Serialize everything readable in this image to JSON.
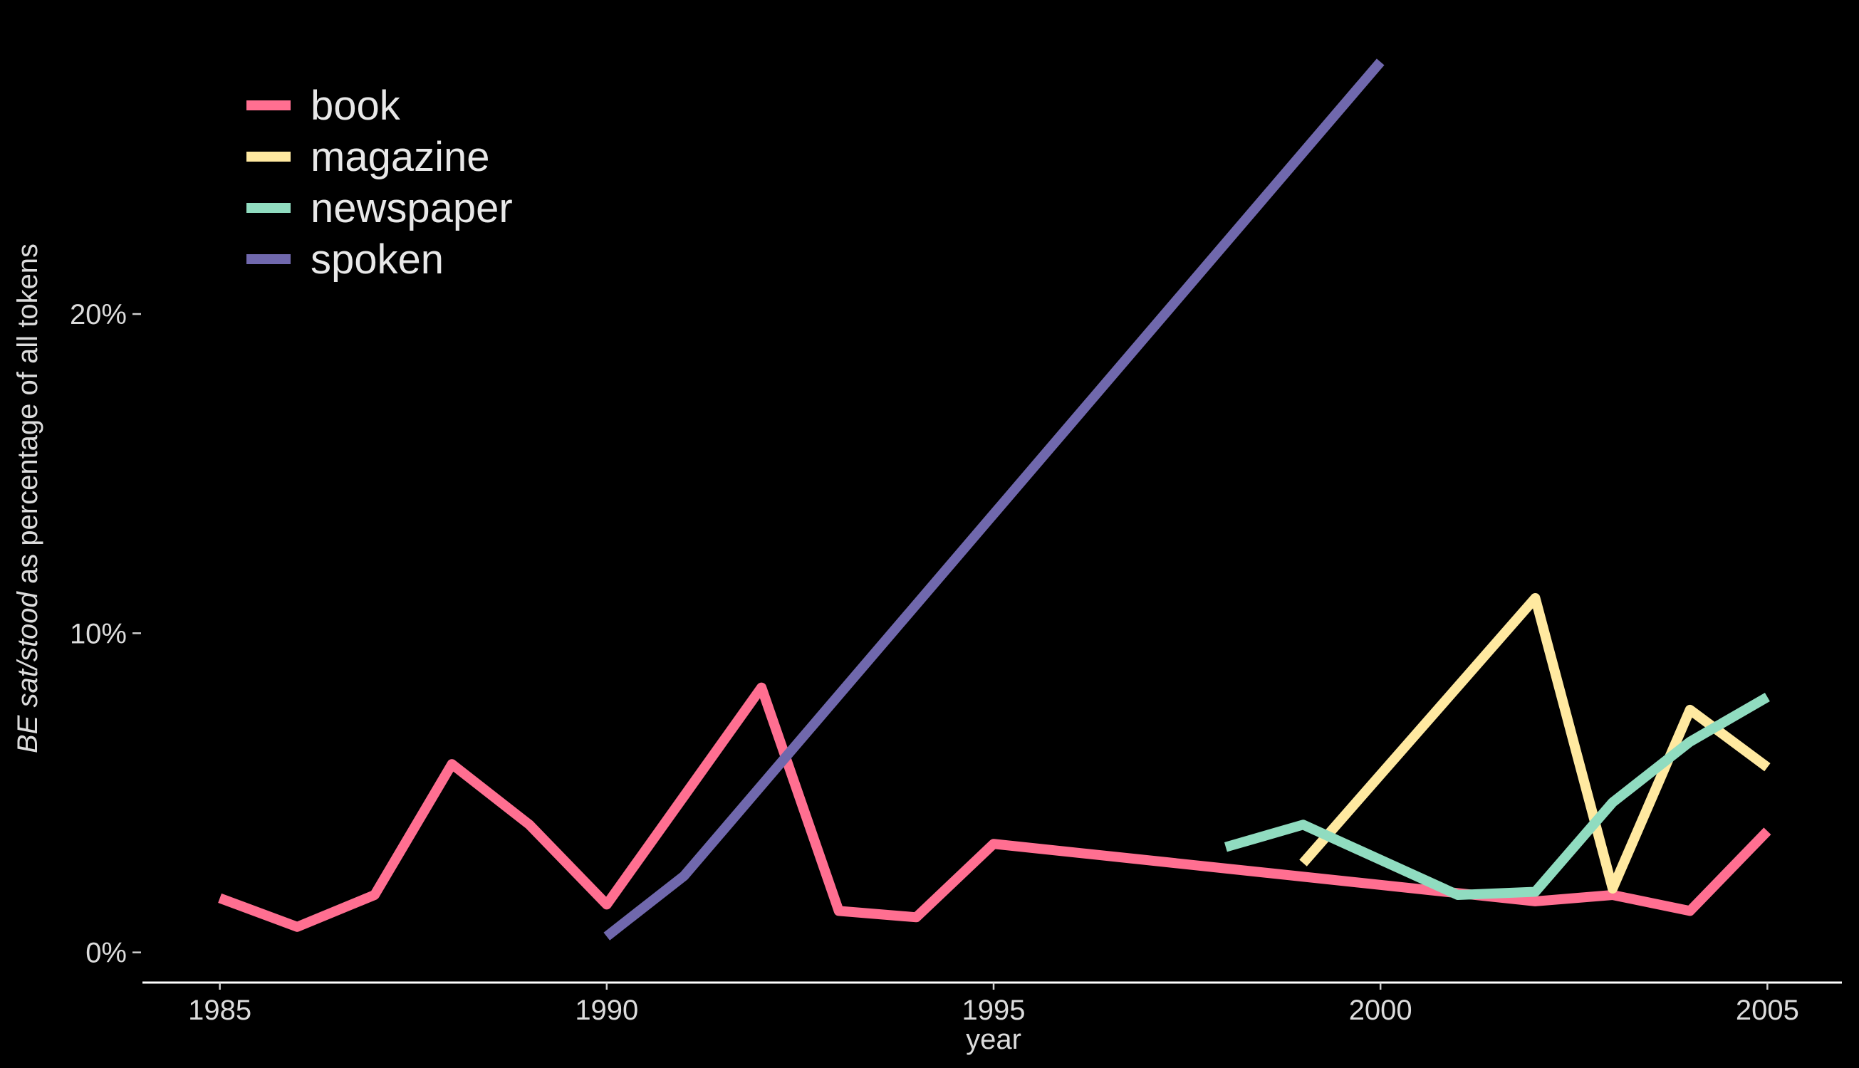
{
  "chart_data": {
    "type": "line",
    "xlabel": "year",
    "ylabel_italic": "BE sat/stood",
    "ylabel_rest": " as percentage of all tokens",
    "xlim": [
      1984,
      2006
    ],
    "ylim": [
      -0.9,
      28.5
    ],
    "x_ticks": [
      1985,
      1990,
      1995,
      2000,
      2005
    ],
    "x_tick_labels": [
      "1985",
      "1990",
      "1995",
      "2000",
      "2005"
    ],
    "y_ticks": [
      0,
      10,
      20
    ],
    "y_tick_labels": [
      "0%",
      "10%",
      "20%"
    ],
    "grid": false,
    "legend_position": "top-left",
    "series": [
      {
        "name": "book",
        "color": "#ff6f91",
        "points": [
          [
            1985,
            1.7
          ],
          [
            1986,
            0.8
          ],
          [
            1987,
            1.8
          ],
          [
            1988,
            5.9
          ],
          [
            1989,
            4.0
          ],
          [
            1990,
            1.5
          ],
          [
            1991,
            4.9
          ],
          [
            1992,
            8.3
          ],
          [
            1993,
            1.3
          ],
          [
            1994,
            1.1
          ],
          [
            1995,
            3.4
          ],
          [
            2002,
            1.6
          ],
          [
            2003,
            1.8
          ],
          [
            2004,
            1.3
          ],
          [
            2005,
            3.8
          ]
        ]
      },
      {
        "name": "magazine",
        "color": "#ffe9a0",
        "points": [
          [
            1999,
            2.8
          ],
          [
            2002,
            11.1
          ],
          [
            2003,
            2.0
          ],
          [
            2004,
            7.6
          ],
          [
            2005,
            5.8
          ]
        ]
      },
      {
        "name": "newspaper",
        "color": "#90dcc0",
        "points": [
          [
            1998,
            3.3
          ],
          [
            1999,
            4.0
          ],
          [
            2001,
            1.8
          ],
          [
            2002,
            1.9
          ],
          [
            2003,
            4.7
          ],
          [
            2004,
            6.6
          ],
          [
            2005,
            8.0
          ]
        ]
      },
      {
        "name": "spoken",
        "color": "#7068ad",
        "points": [
          [
            1990,
            0.5
          ],
          [
            1991,
            2.4
          ],
          [
            2000,
            27.9
          ]
        ]
      }
    ]
  }
}
